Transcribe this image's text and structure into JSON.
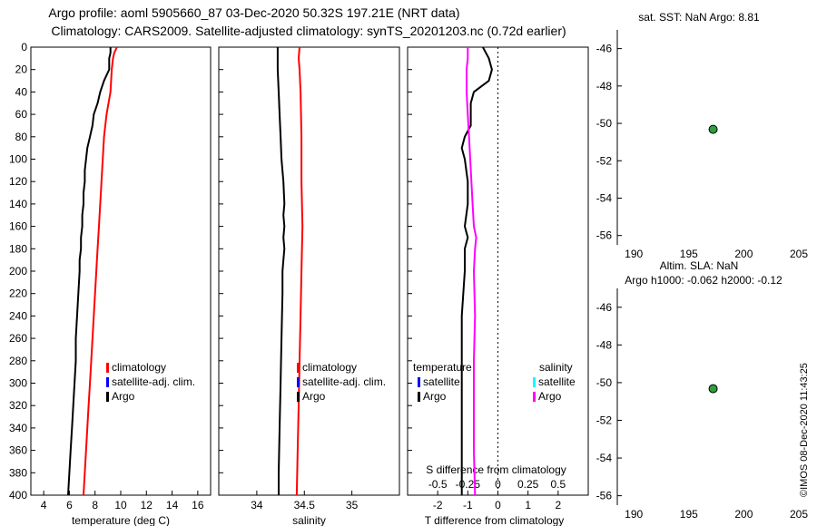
{
  "header": {
    "title_line1": "Argo profile: aoml 5905660_87 03-Dec-2020 50.32S 197.21E (NRT data)",
    "title_line2": "Climatology: CARS2009. Satellite-adjusted climatology: synTS_20201203.nc (0.72d earlier)",
    "right_top": "sat. SST: NaN Argo: 8.81",
    "right_mid1": "Altim. SLA: NaN",
    "right_mid2": "Argo h1000: -0.062 h2000: -0.12",
    "credit": "©IMOS 08-Dec-2020 11:43:25"
  },
  "colors": {
    "argo": "#000000",
    "climatology": "#ff0000",
    "satellite": "#0000ff",
    "sal_diff": "#ff00ff",
    "sal_sat": "#00ffff",
    "dot": "#2e9e3e"
  },
  "chart_data": [
    {
      "type": "line",
      "id": "temperature",
      "xlabel": "temperature (deg C)",
      "xlim": [
        3,
        17
      ],
      "ylim": [
        0,
        400
      ],
      "xticks": [
        "4",
        "6",
        "8",
        "10",
        "12",
        "14",
        "16"
      ],
      "yticks": [
        "0",
        "20",
        "40",
        "60",
        "80",
        "100",
        "120",
        "140",
        "160",
        "180",
        "200",
        "220",
        "240",
        "260",
        "280",
        "300",
        "320",
        "340",
        "360",
        "380",
        "400"
      ],
      "legend": [
        "climatology",
        "satellite-adj. clim.",
        "Argo"
      ],
      "series": [
        {
          "name": "climatology",
          "depth": [
            0,
            5,
            10,
            20,
            40,
            60,
            80,
            100,
            120,
            140,
            160,
            180,
            200,
            220,
            240,
            260,
            280,
            300,
            320,
            340,
            360,
            380,
            400
          ],
          "values": [
            9.7,
            9.5,
            9.4,
            9.3,
            9.2,
            8.9,
            8.7,
            8.6,
            8.5,
            8.4,
            8.3,
            8.2,
            8.1,
            8.0,
            7.9,
            7.8,
            7.7,
            7.6,
            7.5,
            7.4,
            7.3,
            7.2,
            7.1
          ]
        },
        {
          "name": "Argo",
          "depth": [
            0,
            5,
            10,
            20,
            30,
            40,
            50,
            60,
            70,
            80,
            90,
            100,
            110,
            120,
            130,
            140,
            150,
            160,
            170,
            180,
            190,
            200,
            220,
            240,
            260,
            280,
            300,
            320,
            340,
            360,
            380,
            400
          ],
          "values": [
            9.2,
            9.2,
            9.1,
            9.1,
            8.7,
            8.4,
            8.2,
            7.9,
            7.8,
            7.6,
            7.4,
            7.3,
            7.2,
            7.2,
            7.1,
            7.1,
            7.0,
            7.0,
            6.9,
            6.9,
            6.8,
            6.8,
            6.7,
            6.6,
            6.5,
            6.5,
            6.4,
            6.3,
            6.2,
            6.1,
            6.0,
            5.9
          ]
        }
      ]
    },
    {
      "type": "line",
      "id": "salinity",
      "xlabel": "salinity",
      "xlim": [
        33.6,
        35.5
      ],
      "ylim": [
        0,
        400
      ],
      "xticks": [
        "34",
        "34.5",
        "35"
      ],
      "legend": [
        "climatology",
        "satellite-adj. clim.",
        "Argo"
      ],
      "series": [
        {
          "name": "climatology",
          "depth": [
            0,
            10,
            20,
            40,
            80,
            120,
            160,
            200,
            240,
            280,
            320,
            360,
            400
          ],
          "values": [
            34.45,
            34.44,
            34.45,
            34.46,
            34.47,
            34.47,
            34.48,
            34.47,
            34.46,
            34.45,
            34.44,
            34.43,
            34.42
          ]
        },
        {
          "name": "Argo",
          "depth": [
            0,
            20,
            40,
            60,
            80,
            100,
            120,
            140,
            150,
            160,
            170,
            180,
            190,
            200,
            220,
            260,
            300,
            340,
            380,
            400
          ],
          "values": [
            34.22,
            34.22,
            34.23,
            34.24,
            34.25,
            34.26,
            34.28,
            34.29,
            34.28,
            34.29,
            34.28,
            34.29,
            34.28,
            34.27,
            34.27,
            34.26,
            34.25,
            34.24,
            34.23,
            34.23
          ]
        }
      ]
    },
    {
      "type": "line",
      "id": "difference",
      "xlabel": "T difference from climatology",
      "xlabel2": "S difference from climatology",
      "xlim": [
        -3,
        3
      ],
      "ylim": [
        0,
        400
      ],
      "xticks": [
        "-2",
        "-1",
        "0",
        "1",
        "2"
      ],
      "xticks_top": [
        "-0.5",
        "-0.25",
        "0",
        "0.25",
        "0.5"
      ],
      "legend_temperature": [
        "temperature",
        "satellite",
        "Argo"
      ],
      "legend_salinity": [
        "salinity",
        "satellite",
        "Argo"
      ],
      "series": [
        {
          "name": "T difference",
          "depth": [
            0,
            5,
            10,
            20,
            30,
            40,
            50,
            60,
            70,
            80,
            90,
            100,
            120,
            140,
            160,
            170,
            180,
            200,
            240,
            280,
            320,
            360,
            400
          ],
          "values": [
            -0.5,
            -0.4,
            -0.3,
            -0.2,
            -0.3,
            -0.8,
            -0.9,
            -0.9,
            -0.9,
            -1.1,
            -1.2,
            -1.1,
            -1.0,
            -1.0,
            -1.1,
            -1.0,
            -1.1,
            -1.1,
            -1.2,
            -1.2,
            -1.2,
            -1.2,
            -1.2
          ]
        },
        {
          "name": "S difference",
          "depth": [
            0,
            10,
            20,
            40,
            60,
            80,
            100,
            120,
            140,
            160,
            170,
            180,
            200,
            240,
            280,
            320,
            360,
            400
          ],
          "values": [
            -0.25,
            -0.25,
            -0.26,
            -0.26,
            -0.25,
            -0.24,
            -0.23,
            -0.22,
            -0.21,
            -0.2,
            -0.18,
            -0.19,
            -0.2,
            -0.19,
            -0.2,
            -0.2,
            -0.2,
            -0.19
          ]
        }
      ]
    },
    {
      "type": "scatter",
      "id": "sst-map",
      "xlim": [
        188.5,
        205
      ],
      "ylim": [
        -56.5,
        -45
      ],
      "xticks": [
        "190",
        "195",
        "200",
        "205"
      ],
      "yticks": [
        "-46",
        "-48",
        "-50",
        "-52",
        "-54",
        "-56"
      ],
      "points": [
        {
          "x": 197.21,
          "y": -50.32
        }
      ]
    },
    {
      "type": "scatter",
      "id": "sla-map",
      "xlim": [
        188.5,
        205
      ],
      "ylim": [
        -56.5,
        -45
      ],
      "xticks": [
        "190",
        "195",
        "200",
        "205"
      ],
      "yticks": [
        "-46",
        "-48",
        "-50",
        "-52",
        "-54",
        "-56"
      ],
      "points": [
        {
          "x": 197.21,
          "y": -50.32
        }
      ]
    }
  ]
}
